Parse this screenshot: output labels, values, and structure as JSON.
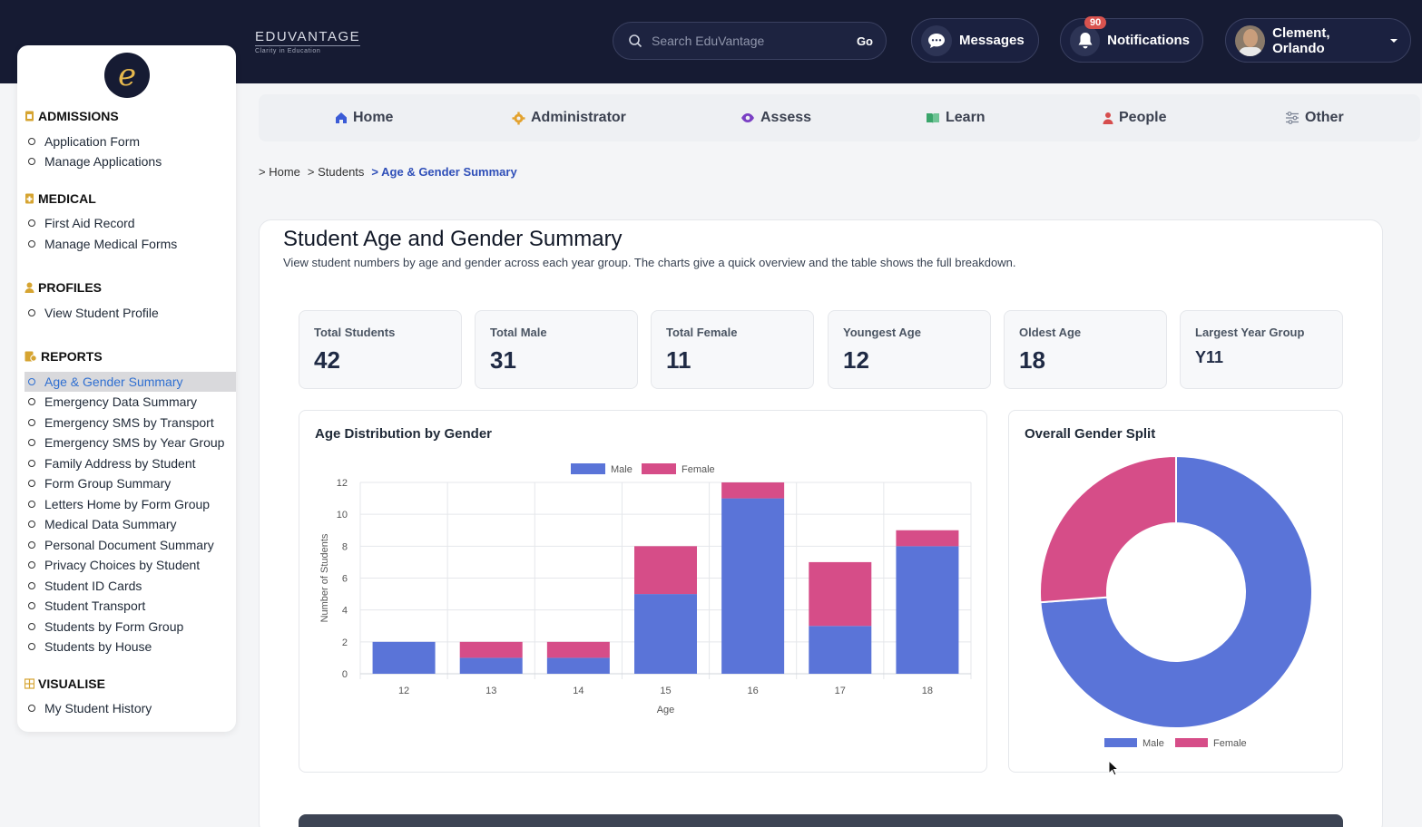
{
  "brand": {
    "name": "EDUVANTAGE",
    "tagline": "Clarity in Education"
  },
  "search": {
    "placeholder": "Search EduVantage",
    "button": "Go"
  },
  "header": {
    "messages": "Messages",
    "notifications": "Notifications",
    "notifications_count": "90",
    "user": "Clement, Orlando"
  },
  "sidebar": {
    "logo_letter": "e",
    "sections": [
      {
        "title": "ADMISSIONS",
        "items": [
          "Application Form",
          "Manage Applications"
        ]
      },
      {
        "title": "MEDICAL",
        "items": [
          "First Aid Record",
          "Manage Medical Forms"
        ]
      },
      {
        "title": "PROFILES",
        "items": [
          "View Student Profile"
        ]
      },
      {
        "title": "REPORTS",
        "items": [
          "Age & Gender Summary",
          "Emergency Data Summary",
          "Emergency SMS by Transport",
          "Emergency SMS by Year Group",
          "Family Address by Student",
          "Form Group Summary",
          "Letters Home by Form Group",
          "Medical Data Summary",
          "Personal Document Summary",
          "Privacy Choices by Student",
          "Student ID Cards",
          "Student Transport",
          "Students by Form Group",
          "Students by House"
        ]
      },
      {
        "title": "VISUALISE",
        "items": [
          "My Student History"
        ]
      }
    ]
  },
  "nav": [
    "Home",
    "Administrator",
    "Assess",
    "Learn",
    "People",
    "Other"
  ],
  "breadcrumb": [
    "> Home",
    "> Students",
    "> Age & Gender Summary"
  ],
  "page": {
    "title": "Student Age and Gender Summary",
    "subtitle": "View student numbers by age and gender across each year group. The charts give a quick overview and the table shows the full breakdown."
  },
  "stats": [
    {
      "label": "Total Students",
      "value": "42"
    },
    {
      "label": "Total Male",
      "value": "31"
    },
    {
      "label": "Total Female",
      "value": "11"
    },
    {
      "label": "Youngest Age",
      "value": "12"
    },
    {
      "label": "Oldest Age",
      "value": "18"
    },
    {
      "label": "Largest Year Group",
      "value": "Y11"
    }
  ],
  "colors": {
    "male": "#5a74d8",
    "female": "#d64d88",
    "accent": "#2f6fd1",
    "topbar": "#161b33"
  },
  "chart_data": [
    {
      "type": "bar",
      "stacked": true,
      "title": "Age Distribution by Gender",
      "xlabel": "Age",
      "ylabel": "Number of Students",
      "categories": [
        "12",
        "13",
        "14",
        "15",
        "16",
        "17",
        "18"
      ],
      "series": [
        {
          "name": "Male",
          "values": [
            2,
            1,
            1,
            5,
            11,
            3,
            8
          ]
        },
        {
          "name": "Female",
          "values": [
            0,
            1,
            1,
            3,
            1,
            4,
            1
          ]
        }
      ],
      "ylim": [
        0,
        12
      ],
      "yticks": [
        0,
        2,
        4,
        6,
        8,
        10,
        12
      ],
      "legend": "top",
      "grid": true
    },
    {
      "type": "pie",
      "donut": true,
      "title": "Overall Gender Split",
      "labels": [
        "Male",
        "Female"
      ],
      "values": [
        31,
        11
      ],
      "legend": "bottom"
    }
  ]
}
